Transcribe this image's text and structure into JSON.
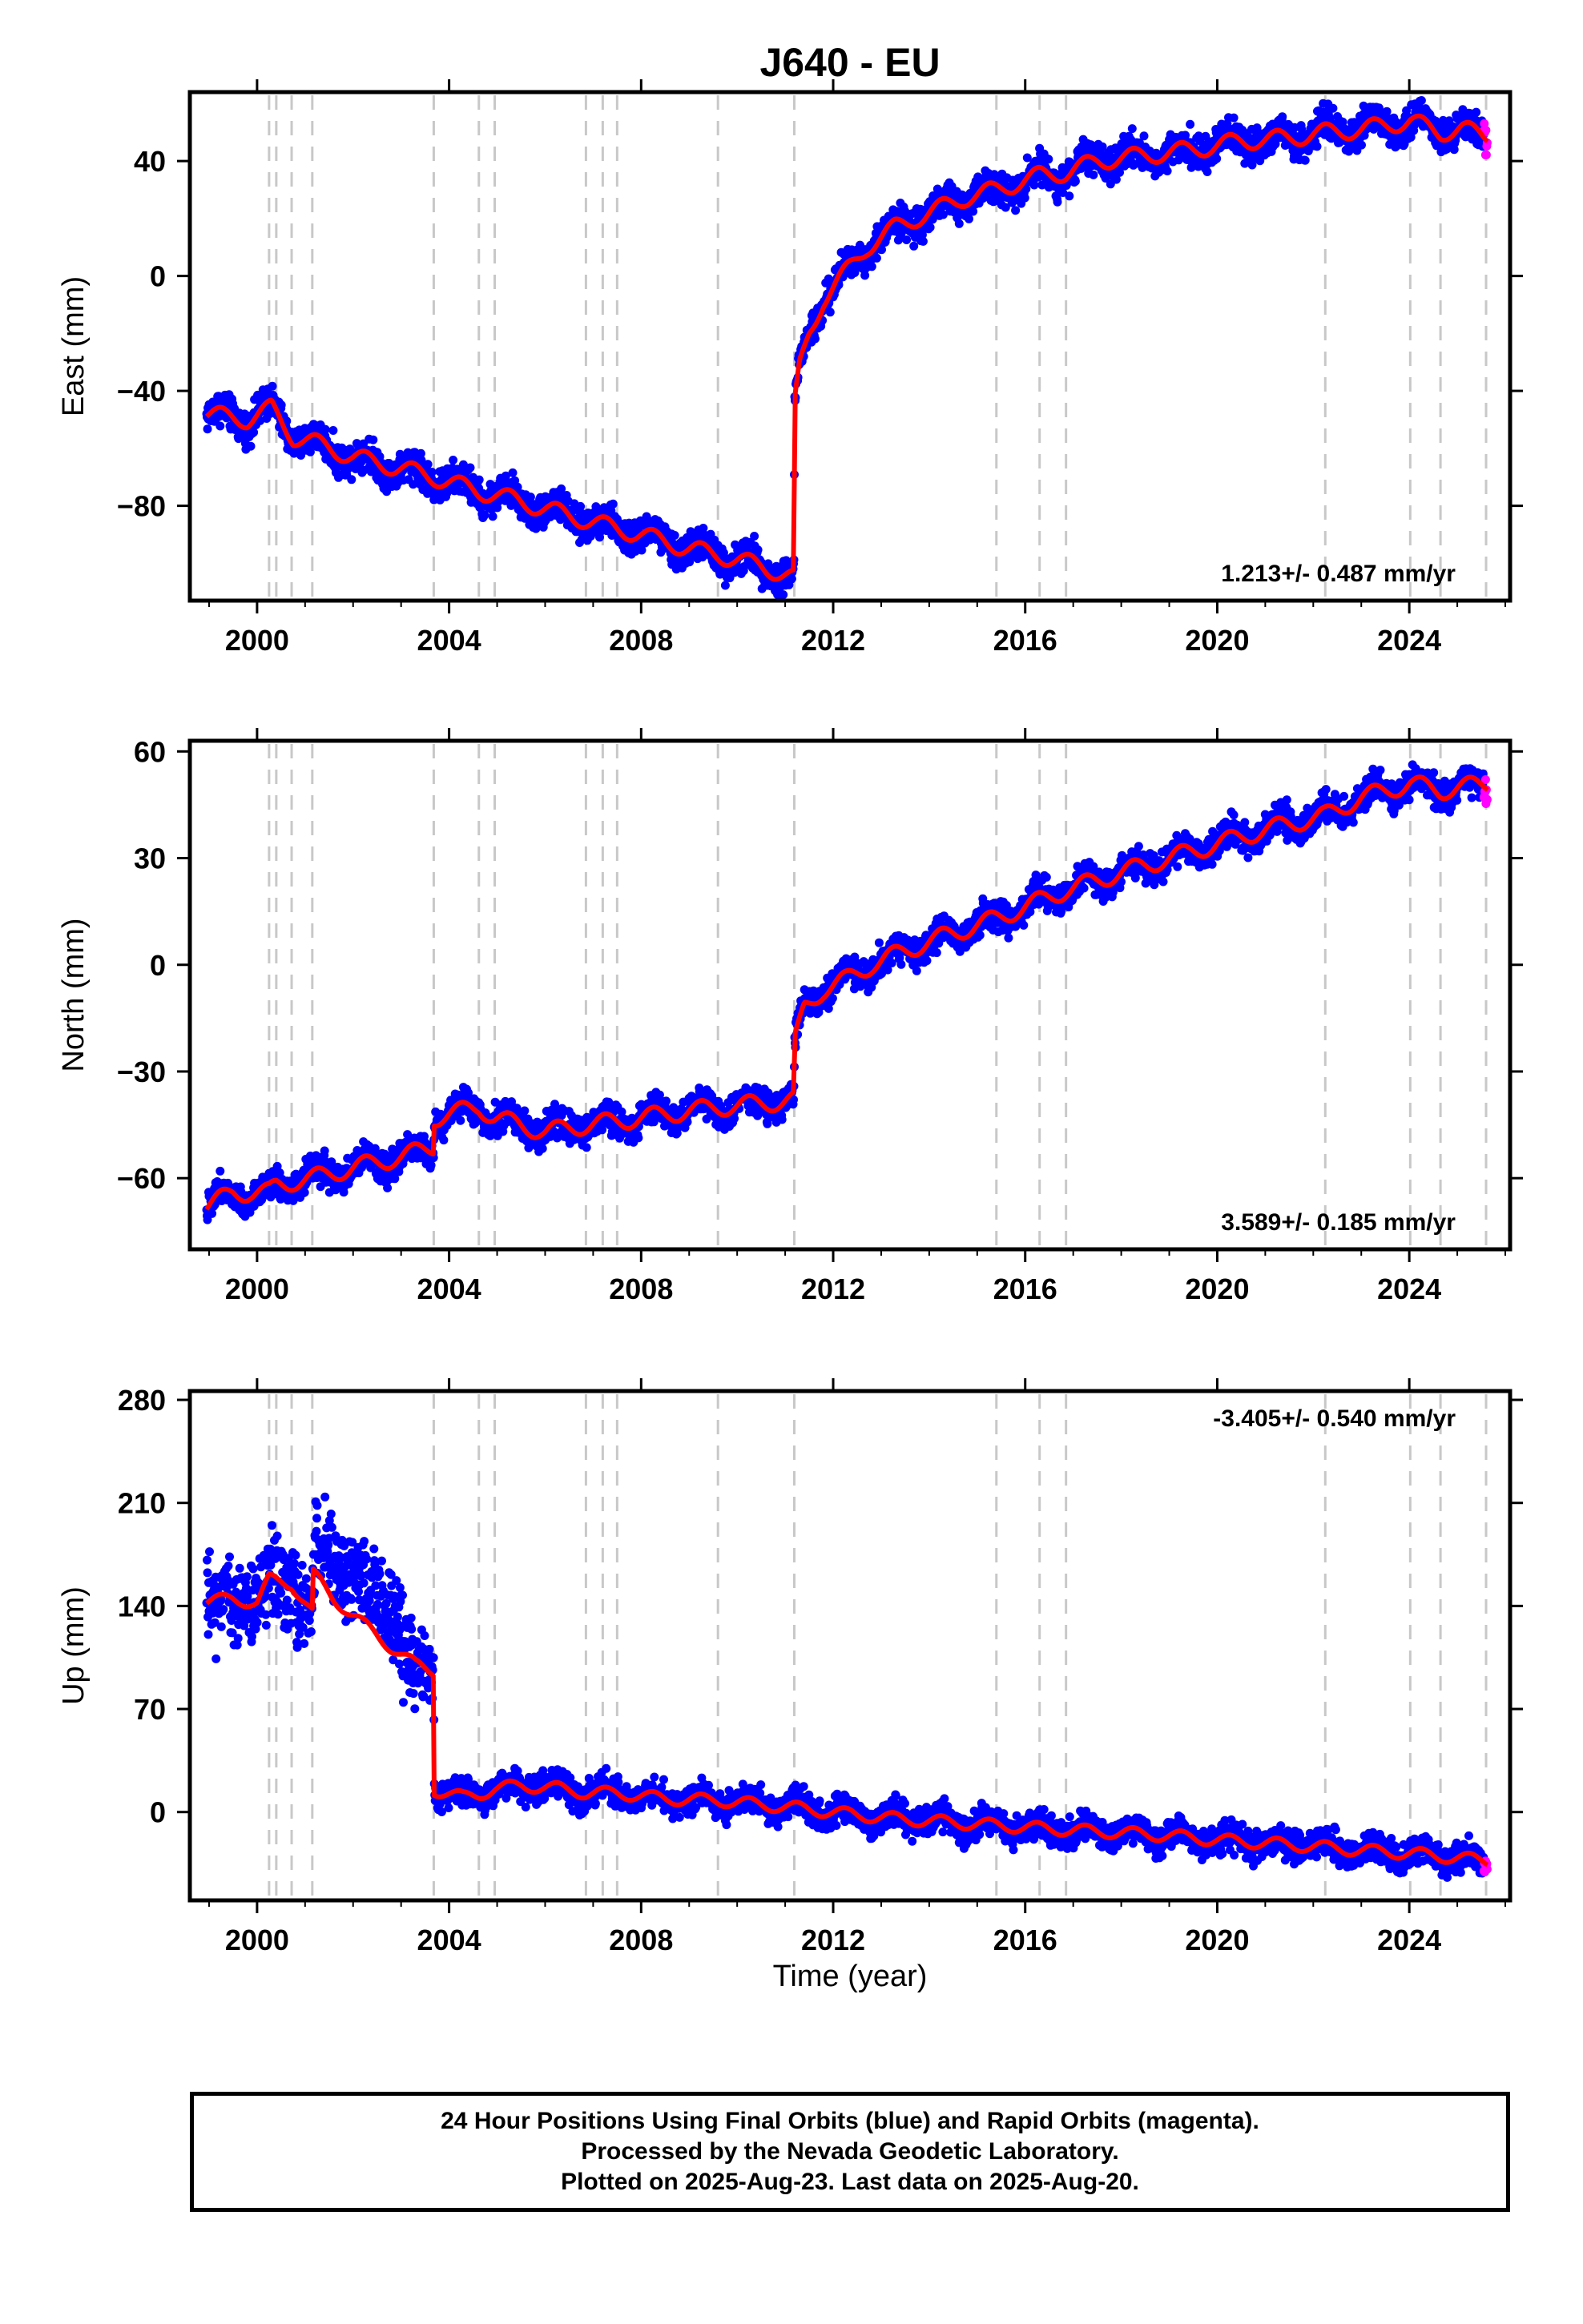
{
  "title": "J640 - EU",
  "xlabel": "Time (year)",
  "footer": {
    "line1": "24 Hour Positions Using Final Orbits (blue) and Rapid Orbits (magenta).",
    "line2": "Processed by the Nevada Geodetic Laboratory.",
    "line3": "Plotted on 2025-Aug-23. Last data on 2025-Aug-20."
  },
  "colors": {
    "final_orbits": "#0000ff",
    "rapid_orbits": "#ff00ff",
    "model_fit": "#ff0000",
    "event_lines": "#c8c8c8"
  },
  "event_lines_years": [
    2000.25,
    2000.4,
    2000.72,
    2001.15,
    2003.68,
    2004.62,
    2004.95,
    2006.85,
    2007.2,
    2007.5,
    2009.6,
    2011.19,
    2015.4,
    2016.3,
    2016.85,
    2022.25,
    2024.02,
    2024.65,
    2025.6
  ],
  "chart_data": [
    {
      "type": "scatter",
      "name": "East",
      "ylabel": "East (mm)",
      "xlim": [
        1998.6,
        2026.1
      ],
      "ylim": [
        -113,
        64
      ],
      "xticks": [
        2000,
        2004,
        2008,
        2012,
        2016,
        2020,
        2024
      ],
      "yticks": [
        -80,
        -40,
        0,
        40
      ],
      "grid": false,
      "rate_label": "1.213+/- 0.487 mm/yr",
      "rate_position": "bottom-right",
      "seasonal_amplitude": 3,
      "scatter_noise": 4,
      "data_start": 1998.95,
      "data_end": 2025.63,
      "rapid_start": 2025.45,
      "model_fit": [
        [
          1998.95,
          -48
        ],
        [
          1999.8,
          -50
        ],
        [
          2000.3,
          -46
        ],
        [
          2000.75,
          -56
        ],
        [
          2001.2,
          -58
        ],
        [
          2002.0,
          -63
        ],
        [
          2003.0,
          -67
        ],
        [
          2003.68,
          -70
        ],
        [
          2004.62,
          -75
        ],
        [
          2004.95,
          -76
        ],
        [
          2006.0,
          -81
        ],
        [
          2006.85,
          -85
        ],
        [
          2007.5,
          -88
        ],
        [
          2008.0,
          -90
        ],
        [
          2009.0,
          -95
        ],
        [
          2009.6,
          -97
        ],
        [
          2010.5,
          -101
        ],
        [
          2011.18,
          -105
        ],
        [
          2011.2,
          -45
        ],
        [
          2011.3,
          -32
        ],
        [
          2011.5,
          -20
        ],
        [
          2011.8,
          -8
        ],
        [
          2012.2,
          0
        ],
        [
          2012.7,
          10
        ],
        [
          2013.3,
          17
        ],
        [
          2014.0,
          22
        ],
        [
          2014.7,
          27
        ],
        [
          2015.4,
          30
        ],
        [
          2016.3,
          35
        ],
        [
          2016.85,
          36
        ],
        [
          2017.5,
          40
        ],
        [
          2018.5,
          42
        ],
        [
          2019.5,
          44
        ],
        [
          2020.5,
          47
        ],
        [
          2021.5,
          48
        ],
        [
          2022.25,
          50
        ],
        [
          2023.0,
          51
        ],
        [
          2024.02,
          54
        ],
        [
          2024.65,
          50
        ],
        [
          2025.1,
          51
        ],
        [
          2025.6,
          49
        ]
      ]
    },
    {
      "type": "scatter",
      "name": "North",
      "ylabel": "North (mm)",
      "xlim": [
        1998.6,
        2026.1
      ],
      "ylim": [
        -80,
        63
      ],
      "xticks": [
        2000,
        2004,
        2008,
        2012,
        2016,
        2020,
        2024
      ],
      "yticks": [
        -60,
        -30,
        0,
        30,
        60
      ],
      "grid": false,
      "rate_label": "3.589+/- 0.185 mm/yr",
      "rate_position": "bottom-right",
      "seasonal_amplitude": 2.5,
      "scatter_noise": 3,
      "data_start": 1998.95,
      "data_end": 2025.63,
      "rapid_start": 2025.45,
      "model_fit": [
        [
          1998.95,
          -68
        ],
        [
          1999.5,
          -64
        ],
        [
          2000.25,
          -64
        ],
        [
          2000.4,
          -62
        ],
        [
          2000.72,
          -61
        ],
        [
          2001.15,
          -60
        ],
        [
          2002.0,
          -57
        ],
        [
          2003.0,
          -54
        ],
        [
          2003.68,
          -51
        ],
        [
          2003.69,
          -43
        ],
        [
          2004.62,
          -40
        ],
        [
          2004.95,
          -43
        ],
        [
          2006.0,
          -47
        ],
        [
          2006.85,
          -45
        ],
        [
          2007.5,
          -44
        ],
        [
          2008.5,
          -42
        ],
        [
          2009.6,
          -40
        ],
        [
          2010.5,
          -39
        ],
        [
          2011.18,
          -38
        ],
        [
          2011.2,
          -22
        ],
        [
          2011.4,
          -12
        ],
        [
          2011.8,
          -7
        ],
        [
          2012.3,
          -4
        ],
        [
          2012.8,
          0
        ],
        [
          2013.5,
          4
        ],
        [
          2014.3,
          8
        ],
        [
          2015.4,
          13
        ],
        [
          2016.3,
          18
        ],
        [
          2016.85,
          21
        ],
        [
          2018.0,
          26
        ],
        [
          2019.0,
          30
        ],
        [
          2020.0,
          34
        ],
        [
          2021.0,
          38
        ],
        [
          2022.25,
          42
        ],
        [
          2023.0,
          47
        ],
        [
          2024.02,
          51
        ],
        [
          2024.65,
          49
        ],
        [
          2025.6,
          51
        ]
      ]
    },
    {
      "type": "scatter",
      "name": "Up",
      "ylabel": "Up (mm)",
      "xlim": [
        1998.6,
        2026.1
      ],
      "ylim": [
        -60,
        286
      ],
      "xticks": [
        2000,
        2004,
        2008,
        2012,
        2016,
        2020,
        2024
      ],
      "yticks": [
        0,
        70,
        140,
        210,
        280
      ],
      "grid": false,
      "rate_label": "-3.405+/- 0.540 mm/yr",
      "rate_position": "top-right",
      "seasonal_amplitude": 4,
      "scatter_noise": 7,
      "data_start": 1998.95,
      "data_end": 2025.63,
      "rapid_start": 2025.45,
      "model_fit": [
        [
          1998.95,
          143
        ],
        [
          1999.5,
          145
        ],
        [
          2000.0,
          142
        ],
        [
          2000.25,
          158
        ],
        [
          2000.72,
          155
        ],
        [
          2001.15,
          135
        ],
        [
          2001.16,
          162
        ],
        [
          2001.6,
          145
        ],
        [
          2002.2,
          128
        ],
        [
          2002.8,
          112
        ],
        [
          2003.3,
          100
        ],
        [
          2003.68,
          96
        ],
        [
          2003.69,
          15
        ],
        [
          2004.3,
          10
        ],
        [
          2004.62,
          12
        ],
        [
          2004.95,
          16
        ],
        [
          2005.5,
          18
        ],
        [
          2006.3,
          16
        ],
        [
          2006.85,
          13
        ],
        [
          2007.5,
          13
        ],
        [
          2008.5,
          9
        ],
        [
          2009.6,
          8
        ],
        [
          2010.5,
          5
        ],
        [
          2011.19,
          3
        ],
        [
          2012.5,
          -2
        ],
        [
          2013.5,
          -5
        ],
        [
          2014.5,
          -7
        ],
        [
          2015.4,
          -9
        ],
        [
          2016.3,
          -11
        ],
        [
          2016.85,
          -12
        ],
        [
          2018.0,
          -14
        ],
        [
          2019.0,
          -16
        ],
        [
          2020.0,
          -19
        ],
        [
          2021.0,
          -21
        ],
        [
          2022.25,
          -24
        ],
        [
          2023.0,
          -26
        ],
        [
          2024.02,
          -28
        ],
        [
          2024.65,
          -30
        ],
        [
          2025.6,
          -33
        ]
      ]
    }
  ]
}
